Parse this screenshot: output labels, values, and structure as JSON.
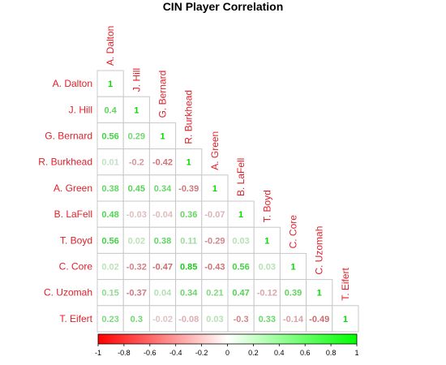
{
  "chart_data": {
    "type": "heatmap",
    "title": "CIN Player Correlation",
    "labels": [
      "A. Dalton",
      "J. Hill",
      "G. Bernard",
      "R. Burkhead",
      "A. Green",
      "B. LaFell",
      "T. Boyd",
      "C. Core",
      "C. Uzomah",
      "T. Eifert"
    ],
    "matrix": [
      [
        "1"
      ],
      [
        "0.4",
        "1"
      ],
      [
        "0.56",
        "0.29",
        "1"
      ],
      [
        "0.01",
        "-0.2",
        "-0.42",
        "1"
      ],
      [
        "0.38",
        "0.45",
        "0.34",
        "-0.39",
        "1"
      ],
      [
        "0.48",
        "-0.03",
        "-0.04",
        "0.36",
        "-0.07",
        "1"
      ],
      [
        "0.56",
        "0.02",
        "0.38",
        "0.11",
        "-0.29",
        "0.03",
        "1"
      ],
      [
        "0.02",
        "-0.32",
        "-0.47",
        "0.85",
        "-0.43",
        "0.56",
        "0.03",
        "1"
      ],
      [
        "0.15",
        "-0.37",
        "0.04",
        "0.34",
        "0.21",
        "0.47",
        "-0.12",
        "0.39",
        "1"
      ],
      [
        "0.23",
        "0.3",
        "-0.02",
        "-0.08",
        "0.03",
        "-0.3",
        "0.33",
        "-0.14",
        "-0.49",
        "1"
      ]
    ],
    "colorbar": {
      "range": [
        -1,
        1
      ],
      "ticks": [
        "-1",
        "-0.8",
        "-0.6",
        "-0.4",
        "-0.2",
        "0",
        "0.2",
        "0.4",
        "0.6",
        "0.8",
        "1"
      ],
      "low_color": "#ff0000",
      "mid_color": "#ffffff",
      "high_color": "#00ff00"
    },
    "label_color": "#e0202a",
    "grid": "cell-borders",
    "triangle": "lower"
  }
}
